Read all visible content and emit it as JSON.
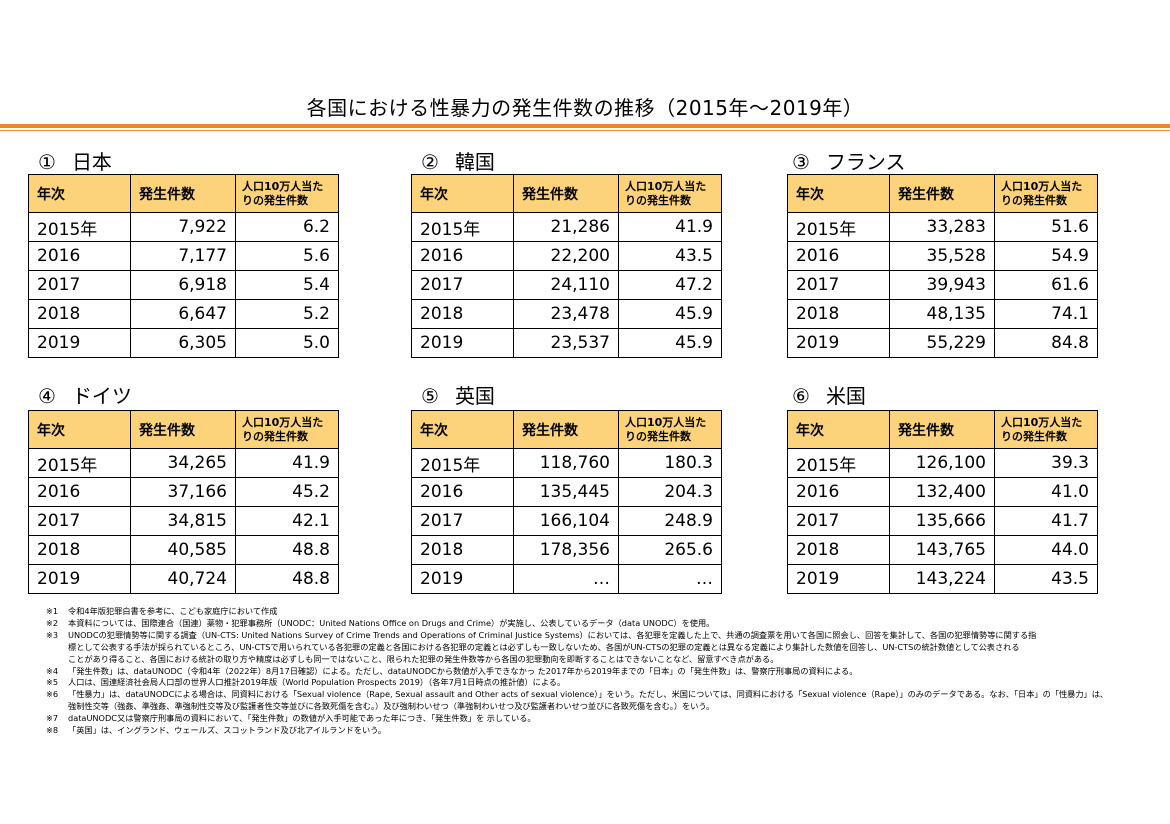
{
  "title": "各国における性暴力の発生件数の推移（2015年～2019年）",
  "headers": {
    "year": "年次",
    "count": "発生件数",
    "per_line1": "人口10万人当た",
    "per_line2": "りの発生件数"
  },
  "countries": [
    {
      "num": "①",
      "name": "日本",
      "rows": [
        {
          "year": "2015年",
          "count": "7,922",
          "rate": "6.2"
        },
        {
          "year": "2016",
          "count": "7,177",
          "rate": "5.6"
        },
        {
          "year": "2017",
          "count": "6,918",
          "rate": "5.4"
        },
        {
          "year": "2018",
          "count": "6,647",
          "rate": "5.2"
        },
        {
          "year": "2019",
          "count": "6,305",
          "rate": "5.0"
        }
      ]
    },
    {
      "num": "②",
      "name": "韓国",
      "rows": [
        {
          "year": "2015年",
          "count": "21,286",
          "rate": "41.9"
        },
        {
          "year": "2016",
          "count": "22,200",
          "rate": "43.5"
        },
        {
          "year": "2017",
          "count": "24,110",
          "rate": "47.2"
        },
        {
          "year": "2018",
          "count": "23,478",
          "rate": "45.9"
        },
        {
          "year": "2019",
          "count": "23,537",
          "rate": "45.9"
        }
      ]
    },
    {
      "num": "③",
      "name": "フランス",
      "rows": [
        {
          "year": "2015年",
          "count": "33,283",
          "rate": "51.6"
        },
        {
          "year": "2016",
          "count": "35,528",
          "rate": "54.9"
        },
        {
          "year": "2017",
          "count": "39,943",
          "rate": "61.6"
        },
        {
          "year": "2018",
          "count": "48,135",
          "rate": "74.1"
        },
        {
          "year": "2019",
          "count": "55,229",
          "rate": "84.8"
        }
      ]
    },
    {
      "num": "④",
      "name": "ドイツ",
      "rows": [
        {
          "year": "2015年",
          "count": "34,265",
          "rate": "41.9"
        },
        {
          "year": "2016",
          "count": "37,166",
          "rate": "45.2"
        },
        {
          "year": "2017",
          "count": "34,815",
          "rate": "42.1"
        },
        {
          "year": "2018",
          "count": "40,585",
          "rate": "48.8"
        },
        {
          "year": "2019",
          "count": "40,724",
          "rate": "48.8"
        }
      ]
    },
    {
      "num": "⑤",
      "name": "英国",
      "rows": [
        {
          "year": "2015年",
          "count": "118,760",
          "rate": "180.3"
        },
        {
          "year": "2016",
          "count": "135,445",
          "rate": "204.3"
        },
        {
          "year": "2017",
          "count": "166,104",
          "rate": "248.9"
        },
        {
          "year": "2018",
          "count": "178,356",
          "rate": "265.6"
        },
        {
          "year": "2019",
          "count": "…",
          "rate": "…"
        }
      ]
    },
    {
      "num": "⑥",
      "name": "米国",
      "rows": [
        {
          "year": "2015年",
          "count": "126,100",
          "rate": "39.3"
        },
        {
          "year": "2016",
          "count": "132,400",
          "rate": "41.0"
        },
        {
          "year": "2017",
          "count": "135,666",
          "rate": "41.7"
        },
        {
          "year": "2018",
          "count": "143,765",
          "rate": "44.0"
        },
        {
          "year": "2019",
          "count": "143,224",
          "rate": "43.5"
        }
      ]
    }
  ],
  "notes": [
    {
      "mark": "※1",
      "text": "令和4年版犯罪白書を参考に、こども家庭庁において作成"
    },
    {
      "mark": "※2",
      "text": "本資料については、国際連合（国連）薬物・犯罪事務所（UNODC：United Nations Office on Drugs and Crime）が実施し、公表しているデータ（data UNODC）を使用。"
    },
    {
      "mark": "※3",
      "text": "UNODCの犯罪情勢等に関する調査（UN-CTS: United Nations Survey of Crime Trends and Operations of Criminal Justice Systems）においては、各犯罪を定義した上で、共通の調査票を用いて各国に照会し、回答を集計して、各国の犯罪情勢等に関する指"
    },
    {
      "mark": "",
      "text": "標として公表する手法が採られているところ、UN-CTSで用いられている各犯罪の定義と各国における各犯罪の定義とは必ずしも一致しないため、各国がUN-CTSの犯罪の定義とは異なる定義により集計した数値を回答し、UN-CTSの統計数値として公表される"
    },
    {
      "mark": "",
      "text": "ことがあり得ること、各国における統計の取り方や精度は必ずしも同一ではないこと、限られた犯罪の発生件数等から各国の犯罪動向を即断することはできないことなど、留意すべき点がある。"
    },
    {
      "mark": "※4",
      "text": "「発生件数」は、dataUNODC（令和4年（2022年）8月17日確認）による。ただし、dataUNODCから数値が入手できなかっ た2017年から2019年までの「日本」の「発生件数」は、警察庁刑事局の資料による。"
    },
    {
      "mark": "※5",
      "text": "人口は、国連経済社会局人口部の世界人口推計2019年版（World Population Prospects 2019）（各年7月1日時点の推計値）による。"
    },
    {
      "mark": "※6",
      "text": "「性暴力」は、dataUNODCによる場合は、同資料における「Sexual violence（Rape, Sexual assault and Other acts of sexual violence）」をいう。ただし、米国については、同資料における「Sexual violence（Rape）」のみのデータである。なお、「日本」の「性暴力」は、"
    },
    {
      "mark": "",
      "text": "強制性交等（強姦、準強姦、準強制性交等及び監護者性交等並びに各致死傷を含む。）及び強制わいせつ（準強制わいせつ及び監護者わいせつ並びに各致死傷を含む。）をいう。"
    },
    {
      "mark": "※7",
      "text": "dataUNODC又は警察庁刑事局の資料において、「発生件数」の数値が入手可能であった年につき、「発生件数」を 示している。"
    },
    {
      "mark": "※8",
      "text": "「英国」は、イングランド、ウェールズ、スコットランド及び北アイルランドをいう。"
    }
  ]
}
